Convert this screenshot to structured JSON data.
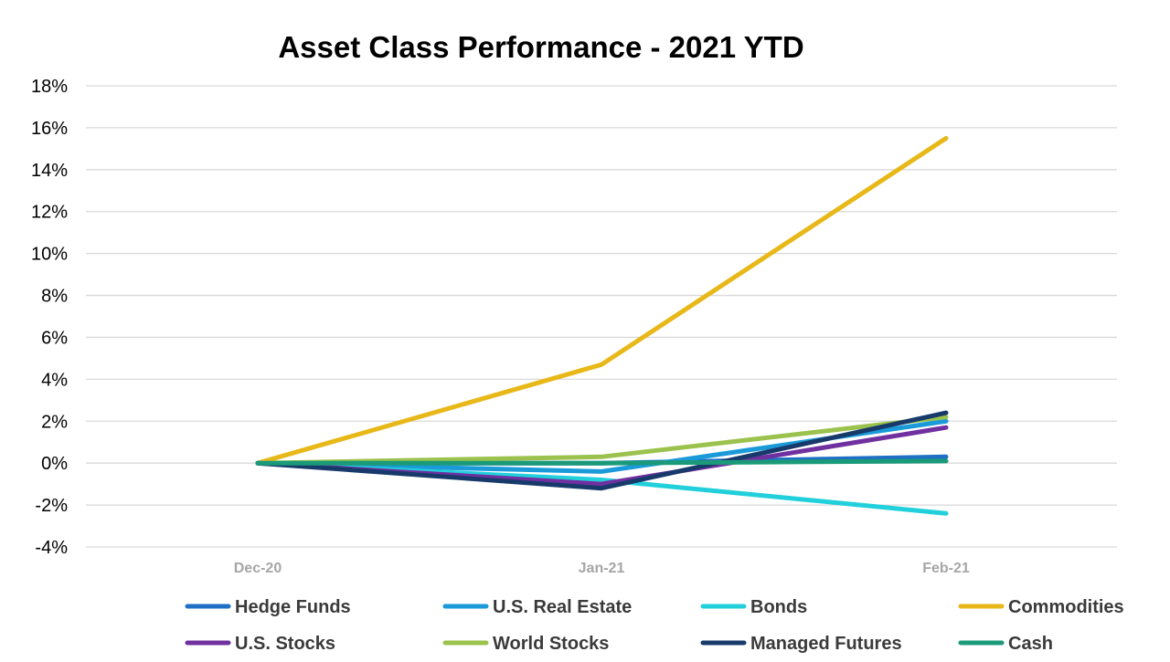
{
  "chart_data": {
    "type": "line",
    "title": "Asset Class Performance - 2021 YTD",
    "xlabel": "",
    "ylabel": "",
    "categories": [
      "Dec-20",
      "Jan-21",
      "Feb-21"
    ],
    "ylim": [
      -4,
      18
    ],
    "yticks": [
      18,
      16,
      14,
      12,
      10,
      8,
      6,
      4,
      2,
      0,
      -2,
      -4
    ],
    "ytick_labels": [
      "18%",
      "16%",
      "14%",
      "12%",
      "10%",
      "8%",
      "6%",
      "4%",
      "2%",
      "0%",
      "-2%",
      "-4%"
    ],
    "grid": "horizontal",
    "legend_position": "bottom",
    "series": [
      {
        "name": "Hedge Funds",
        "color": "#1f6fc5",
        "values": [
          0,
          0.0,
          0.3
        ]
      },
      {
        "name": "U.S. Real Estate",
        "color": "#1a9ad8",
        "values": [
          0,
          -0.4,
          2.0
        ]
      },
      {
        "name": "Bonds",
        "color": "#21d0db",
        "values": [
          0,
          -0.8,
          -2.4
        ]
      },
      {
        "name": "Commodities",
        "color": "#e8b819",
        "values": [
          0,
          4.7,
          15.5
        ]
      },
      {
        "name": "U.S. Stocks",
        "color": "#7030a0",
        "values": [
          0,
          -1.0,
          1.7
        ]
      },
      {
        "name": "World Stocks",
        "color": "#9bc24d",
        "values": [
          0,
          0.3,
          2.2
        ]
      },
      {
        "name": "Managed Futures",
        "color": "#173a6b",
        "values": [
          0,
          -1.2,
          2.4
        ]
      },
      {
        "name": "Cash",
        "color": "#1a9a79",
        "values": [
          0,
          0.0,
          0.1
        ]
      }
    ]
  }
}
